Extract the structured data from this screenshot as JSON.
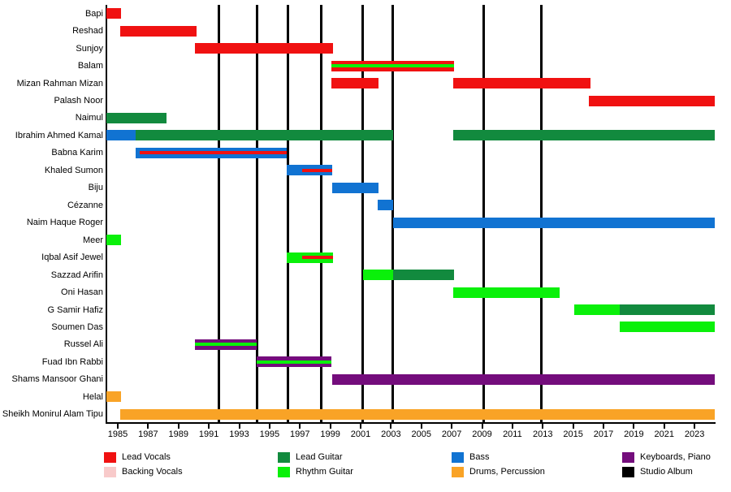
{
  "chart_data": {
    "type": "timeline",
    "title": "",
    "x_axis": {
      "min": 1984.25,
      "max": 2024.33,
      "ticks": [
        1985,
        1987,
        1989,
        1991,
        1993,
        1995,
        1997,
        1999,
        2001,
        2003,
        2005,
        2007,
        2009,
        2011,
        2013,
        2015,
        2017,
        2019,
        2021,
        2023
      ]
    },
    "colors": {
      "lead_vocals": "#f01111",
      "backing_vocals": "#f8caca",
      "lead_guitar": "#128a3e",
      "rhythm_guitar": "#0af00a",
      "bass": "#1173d2",
      "drums": "#f9a326",
      "keyboards": "#740d7c",
      "studio_album": "#000000"
    },
    "album_lines": [
      1991.66,
      1994.18,
      1996.21,
      1998.4,
      2001.14,
      2003.11,
      2009.08,
      2012.9
    ],
    "members": [
      {
        "name": "Bapi",
        "segments": [
          {
            "start": 1984.25,
            "end": 1985.21,
            "role": "lead_vocals"
          }
        ]
      },
      {
        "name": "Reshad",
        "segments": [
          {
            "start": 1985.16,
            "end": 1990.19,
            "role": "lead_vocals"
          }
        ]
      },
      {
        "name": "Sunjoy",
        "segments": [
          {
            "start": 1990.08,
            "end": 1999.18,
            "role": "lead_vocals"
          }
        ]
      },
      {
        "name": "Balam",
        "segments": [
          {
            "start": 1999.09,
            "end": 2007.15,
            "role": "lead_vocals",
            "stripe_role": "rhythm_guitar"
          }
        ]
      },
      {
        "name": "Mizan Rahman Mizan",
        "segments": [
          {
            "start": 1999.09,
            "end": 2002.17,
            "role": "lead_vocals"
          },
          {
            "start": 2007.11,
            "end": 2016.12,
            "role": "lead_vocals"
          }
        ]
      },
      {
        "name": "Palash Noor",
        "segments": [
          {
            "start": 2016.03,
            "end": 2024.33,
            "role": "lead_vocals"
          }
        ]
      },
      {
        "name": "Naimul",
        "segments": [
          {
            "start": 1984.25,
            "end": 1988.21,
            "role": "lead_guitar"
          }
        ]
      },
      {
        "name": "Ibrahim Ahmed Kamal",
        "segments": [
          {
            "start": 1984.25,
            "end": 1986.19,
            "role": "bass"
          },
          {
            "start": 1986.19,
            "end": 2003.14,
            "role": "lead_guitar"
          },
          {
            "start": 2007.11,
            "end": 2024.33,
            "role": "lead_guitar"
          }
        ]
      },
      {
        "name": "Babna Karim",
        "segments": [
          {
            "start": 1986.19,
            "end": 1996.11,
            "role": "bass",
            "stripe_role": "lead_vocals",
            "stripe_start": 1986.43
          }
        ]
      },
      {
        "name": "Khaled Sumon",
        "segments": [
          {
            "start": 1996.11,
            "end": 1999.14,
            "role": "bass",
            "stripe_role": "lead_vocals",
            "stripe_start": 1997.13
          }
        ]
      },
      {
        "name": "Biju",
        "segments": [
          {
            "start": 1999.14,
            "end": 2002.16,
            "role": "bass"
          }
        ]
      },
      {
        "name": "Cézanne",
        "segments": [
          {
            "start": 2002.12,
            "end": 2003.15,
            "role": "bass"
          }
        ]
      },
      {
        "name": "Naim Haque Roger",
        "segments": [
          {
            "start": 2003.15,
            "end": 2024.33,
            "role": "bass"
          }
        ]
      },
      {
        "name": "Meer",
        "segments": [
          {
            "start": 1984.25,
            "end": 1985.21,
            "role": "rhythm_guitar"
          }
        ]
      },
      {
        "name": "Iqbal Asif Jewel",
        "segments": [
          {
            "start": 1996.11,
            "end": 1999.18,
            "role": "rhythm_guitar",
            "stripe_role": "lead_vocals",
            "stripe_start": 1997.13
          }
        ]
      },
      {
        "name": "Sazzad Arifin",
        "segments": [
          {
            "start": 2001.14,
            "end": 2003.14,
            "role": "rhythm_guitar"
          },
          {
            "start": 2003.14,
            "end": 2007.15,
            "role": "lead_guitar"
          }
        ]
      },
      {
        "name": "Oni Hasan",
        "segments": [
          {
            "start": 2007.11,
            "end": 2014.12,
            "role": "rhythm_guitar"
          }
        ]
      },
      {
        "name": "G Samir Hafiz",
        "segments": [
          {
            "start": 2015.05,
            "end": 2018.05,
            "role": "rhythm_guitar"
          },
          {
            "start": 2018.05,
            "end": 2024.33,
            "role": "lead_guitar"
          }
        ]
      },
      {
        "name": "Soumen Das",
        "segments": [
          {
            "start": 2018.05,
            "end": 2024.33,
            "role": "rhythm_guitar"
          }
        ]
      },
      {
        "name": "Russel Ali",
        "segments": [
          {
            "start": 1990.08,
            "end": 1994.15,
            "role": "keyboards",
            "stripe_role": "rhythm_guitar"
          }
        ]
      },
      {
        "name": "Fuad Ibn Rabbi",
        "segments": [
          {
            "start": 1994.15,
            "end": 1999.09,
            "role": "keyboards",
            "stripe_role": "rhythm_guitar"
          }
        ]
      },
      {
        "name": "Shams Mansoor Ghani",
        "segments": [
          {
            "start": 1999.14,
            "end": 2024.33,
            "role": "keyboards"
          }
        ]
      },
      {
        "name": "Helal",
        "segments": [
          {
            "start": 1984.25,
            "end": 1985.21,
            "role": "drums"
          }
        ]
      },
      {
        "name": "Sheikh Monirul Alam Tipu",
        "segments": [
          {
            "start": 1985.14,
            "end": 2024.33,
            "role": "drums"
          }
        ]
      }
    ],
    "legend": [
      {
        "label": "Lead Vocals",
        "role": "lead_vocals"
      },
      {
        "label": "Backing Vocals",
        "role": "backing_vocals"
      },
      {
        "label": "Lead Guitar",
        "role": "lead_guitar"
      },
      {
        "label": "Rhythm Guitar",
        "role": "rhythm_guitar"
      },
      {
        "label": "Bass",
        "role": "bass"
      },
      {
        "label": "Drums, Percussion",
        "role": "drums"
      },
      {
        "label": "Keyboards, Piano",
        "role": "keyboards"
      },
      {
        "label": "Studio Album",
        "role": "studio_album"
      }
    ],
    "legend_position": "bottom",
    "grid": false
  }
}
